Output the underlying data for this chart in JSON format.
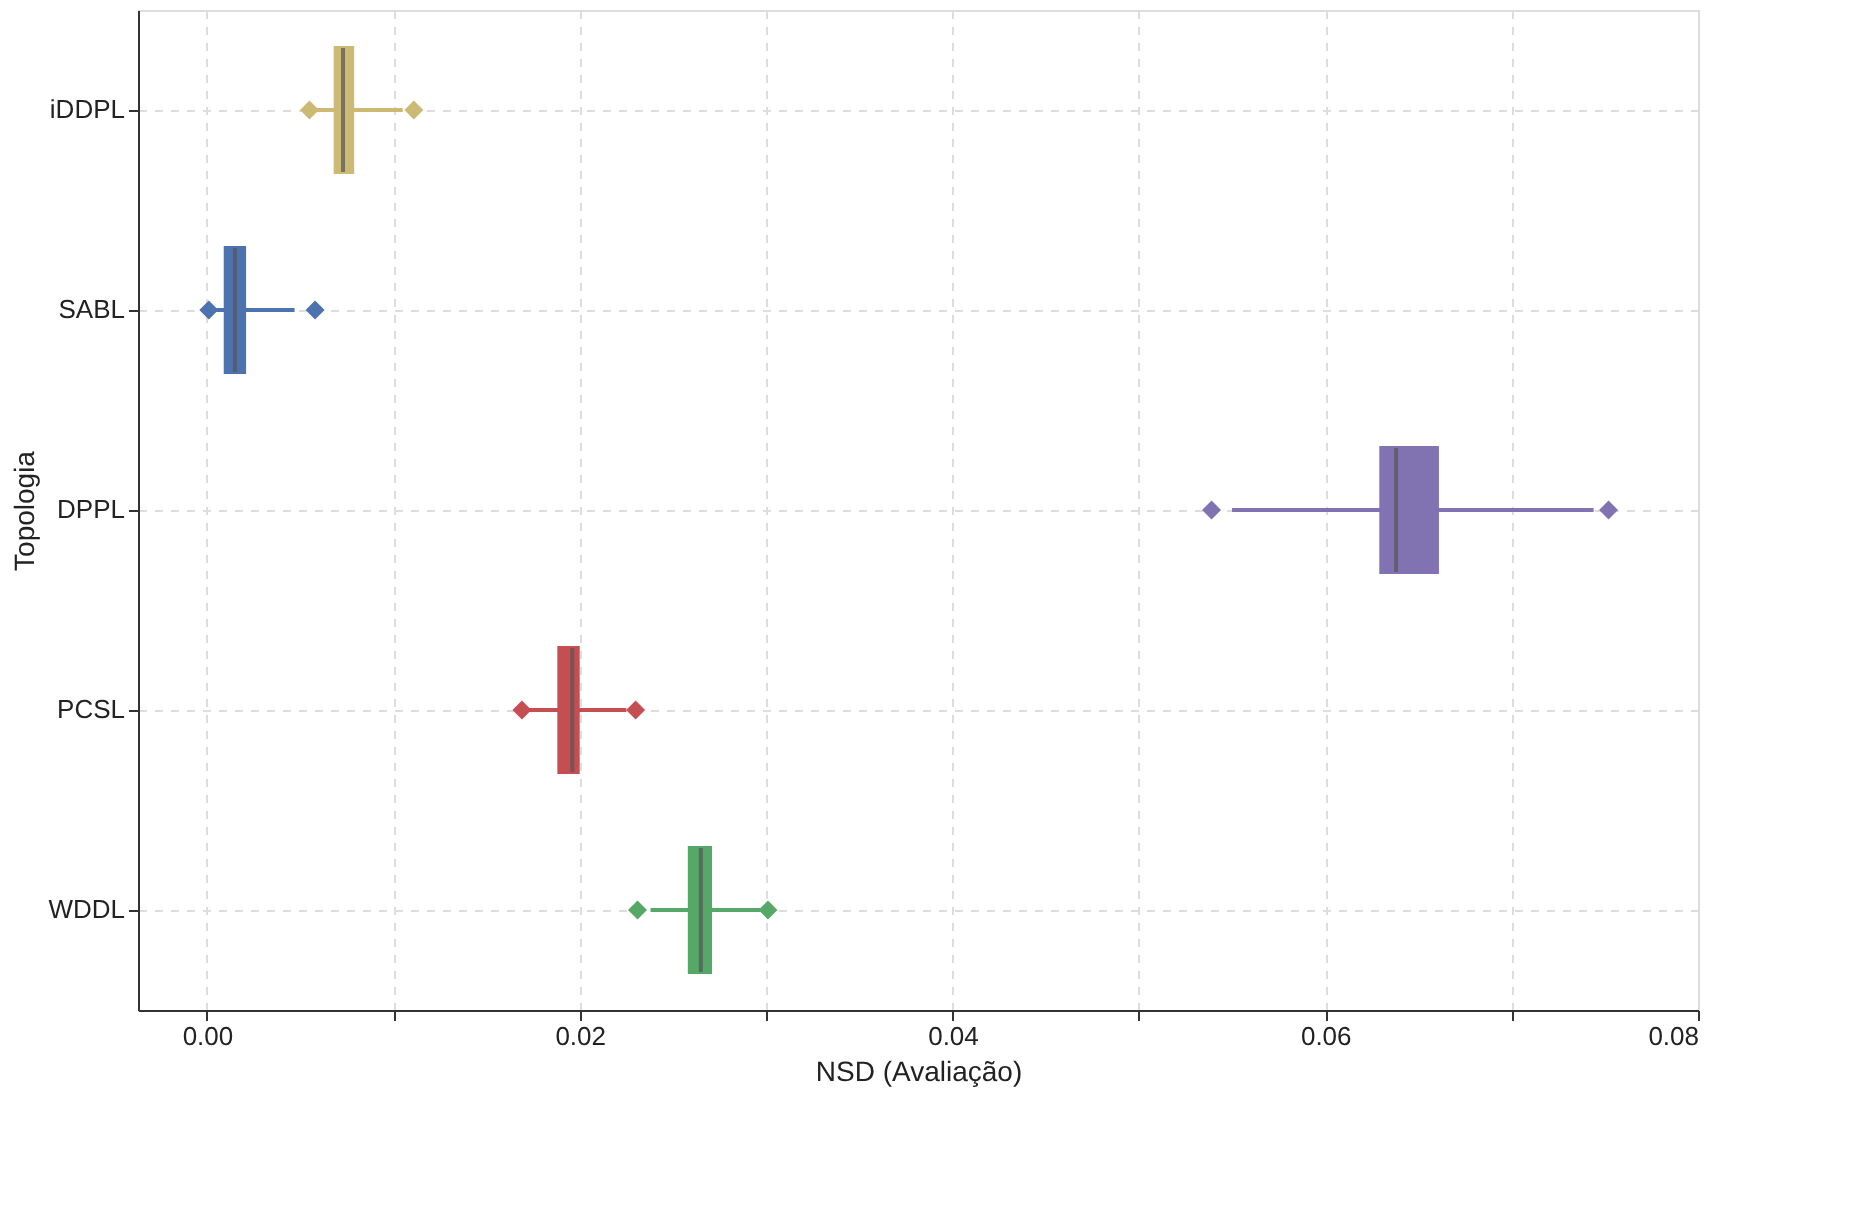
{
  "chart_data": {
    "type": "box",
    "orientation": "horizontal",
    "xlabel": "NSD (Avaliação)",
    "ylabel": "Topologia",
    "categories": [
      "iDDPL",
      "SABL",
      "DPPL",
      "PCSL",
      "WDDL"
    ],
    "colors": [
      "#ccb974",
      "#4c72b0",
      "#8172b2",
      "#c44e52",
      "#55a868"
    ],
    "boxes": [
      {
        "low": 0.0058,
        "q1": 0.0068,
        "median": 0.0073,
        "q3": 0.0079,
        "high": 0.0105,
        "outliers": [
          0.0055,
          0.0111
        ]
      },
      {
        "low": 0.0005,
        "q1": 0.0009,
        "median": 0.0015,
        "q3": 0.0021,
        "high": 0.0047,
        "outliers": [
          0.0001,
          0.0058
        ]
      },
      {
        "low": 0.055,
        "q1": 0.0629,
        "median": 0.0638,
        "q3": 0.0661,
        "high": 0.0744,
        "outliers": [
          0.0539,
          0.0752
        ]
      },
      {
        "low": 0.0172,
        "q1": 0.0188,
        "median": 0.0196,
        "q3": 0.02,
        "high": 0.0225,
        "outliers": [
          0.0169,
          0.023
        ]
      },
      {
        "low": 0.0238,
        "q1": 0.0258,
        "median": 0.0265,
        "q3": 0.0271,
        "high": 0.0297,
        "outliers": [
          0.0231,
          0.0301
        ]
      }
    ],
    "xlim": [
      -0.0037,
      0.08
    ],
    "xticks": [
      {
        "value": 0,
        "label": "0.00"
      },
      {
        "value": 0.01,
        "label": null
      },
      {
        "value": 0.02,
        "label": "0.02"
      },
      {
        "value": 0.03,
        "label": null
      },
      {
        "value": 0.04,
        "label": "0.04"
      },
      {
        "value": 0.05,
        "label": null
      },
      {
        "value": 0.06,
        "label": "0.06"
      },
      {
        "value": 0.07,
        "label": null
      },
      {
        "value": 0.08,
        "label": "0.08"
      }
    ],
    "grid": true
  }
}
